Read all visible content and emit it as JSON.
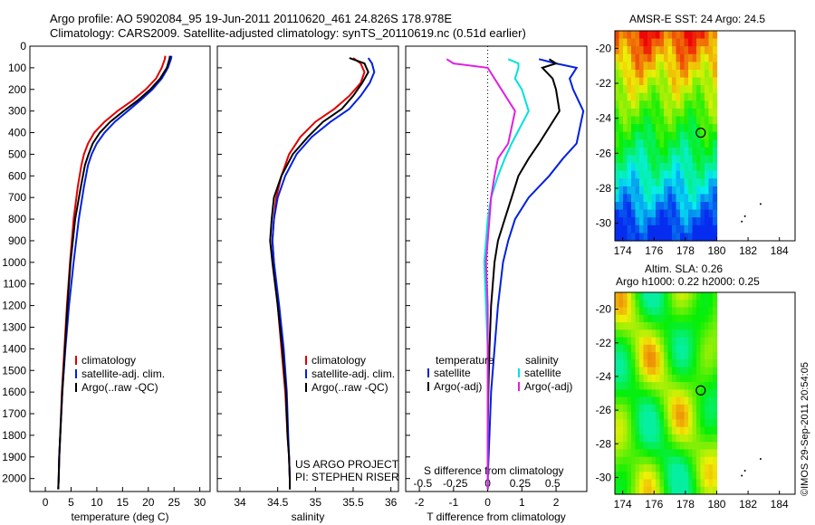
{
  "header": {
    "line1": "Argo profile: AO 5902084_95 19-Jun-2011 20110620_461 24.826S 178.978E",
    "line2": "Climatology: CARS2009. Satellite-adjusted climatology: synTS_20110619.nc (0.51d earlier)"
  },
  "side_stamp": "©IMOS 29-Sep-2011 20:54:05",
  "colors": {
    "climatology": "#e00000",
    "satellite": "#0020e0",
    "argo": "#000000",
    "cyan": "#00e0e0",
    "magenta": "#e020e0"
  },
  "chart_data": [
    {
      "type": "line",
      "id": "temperature",
      "xlabel": "temperature (deg C)",
      "xlim": [
        -3,
        32
      ],
      "xticks": [
        0,
        5,
        10,
        15,
        20,
        25,
        30
      ],
      "ylim": [
        0,
        2060
      ],
      "yticks": [
        0,
        100,
        200,
        300,
        400,
        500,
        600,
        700,
        800,
        900,
        1000,
        1100,
        1200,
        1300,
        1400,
        1500,
        1600,
        1700,
        1800,
        1900,
        2000
      ],
      "legend": [
        "climatology",
        "satellite-adj. clim.",
        "Argo(..raw -QC)"
      ],
      "series": [
        {
          "name": "climatology",
          "color": "#e00000",
          "x": [
            23.3,
            23.2,
            22.6,
            21.5,
            19.5,
            17.0,
            14.0,
            11.5,
            9.5,
            8.3,
            7.5,
            7.0,
            6.3,
            5.5,
            4.8,
            4.2,
            3.7,
            3.2,
            2.9,
            2.7,
            2.6,
            2.5
          ],
          "y": [
            45,
            60,
            100,
            150,
            200,
            250,
            300,
            350,
            400,
            450,
            500,
            550,
            650,
            800,
            1000,
            1200,
            1400,
            1600,
            1800,
            1900,
            2000,
            2050
          ]
        },
        {
          "name": "satellite-adj. clim.",
          "color": "#0020e0",
          "x": [
            24.5,
            24.4,
            23.8,
            22.6,
            20.8,
            18.5,
            16.0,
            13.5,
            11.5,
            10.0,
            9.0,
            8.3,
            7.5,
            6.5,
            5.5,
            4.6,
            3.9,
            3.3,
            2.9,
            2.7,
            2.6,
            2.5
          ],
          "y": [
            45,
            60,
            100,
            150,
            200,
            250,
            300,
            350,
            400,
            450,
            500,
            550,
            650,
            800,
            1000,
            1200,
            1400,
            1600,
            1800,
            1900,
            2000,
            2050
          ]
        },
        {
          "name": "Argo(..raw -QC)",
          "color": "#000000",
          "x": [
            24.2,
            24.1,
            23.6,
            22.3,
            20.4,
            18.0,
            15.2,
            12.6,
            10.6,
            9.2,
            8.4,
            7.7,
            6.9,
            5.8,
            4.9,
            4.3,
            3.8,
            3.3,
            2.9,
            2.7,
            2.6,
            2.5
          ],
          "y": [
            45,
            60,
            100,
            150,
            200,
            250,
            300,
            350,
            400,
            450,
            500,
            550,
            650,
            800,
            1000,
            1200,
            1400,
            1600,
            1800,
            1900,
            2000,
            2050
          ]
        }
      ]
    },
    {
      "type": "line",
      "id": "salinity",
      "xlabel": "salinity",
      "xlim": [
        33.7,
        36.1
      ],
      "xticks": [
        34,
        34.5,
        35,
        35.5,
        36
      ],
      "ylim": [
        0,
        2060
      ],
      "legend": [
        "climatology",
        "satellite-adj. clim.",
        "Argo(..raw -QC)"
      ],
      "annotation": [
        "US ARGO PROJECT",
        "PI: STEPHEN RISER"
      ],
      "series": [
        {
          "name": "climatology",
          "color": "#e00000",
          "x": [
            35.5,
            35.6,
            35.65,
            35.6,
            35.45,
            35.25,
            35.0,
            34.8,
            34.65,
            34.55,
            34.48,
            34.45,
            34.43,
            34.45,
            34.5,
            34.55,
            34.6,
            34.63,
            34.65,
            34.66,
            34.66
          ],
          "y": [
            55,
            80,
            120,
            170,
            230,
            290,
            350,
            420,
            500,
            600,
            700,
            800,
            900,
            1000,
            1200,
            1400,
            1600,
            1800,
            1900,
            2000,
            2050
          ]
        },
        {
          "name": "satellite-adj. clim.",
          "color": "#0020e0",
          "x": [
            35.7,
            35.75,
            35.78,
            35.72,
            35.6,
            35.45,
            35.2,
            34.95,
            34.75,
            34.6,
            34.5,
            34.45,
            34.43,
            34.45,
            34.52,
            34.58,
            34.62,
            34.64,
            34.65,
            34.66,
            34.66
          ],
          "y": [
            55,
            80,
            120,
            170,
            230,
            290,
            350,
            420,
            500,
            600,
            700,
            800,
            900,
            1000,
            1200,
            1400,
            1600,
            1800,
            1900,
            2000,
            2050
          ]
        },
        {
          "name": "Argo(..raw -QC)",
          "color": "#000000",
          "x": [
            35.45,
            35.65,
            35.7,
            35.62,
            35.5,
            35.35,
            35.1,
            34.9,
            34.7,
            34.55,
            34.45,
            34.42,
            34.4,
            34.43,
            34.5,
            34.56,
            34.61,
            34.63,
            34.65,
            34.66,
            34.66
          ],
          "y": [
            55,
            80,
            120,
            170,
            230,
            290,
            350,
            420,
            500,
            600,
            700,
            800,
            900,
            1000,
            1200,
            1400,
            1600,
            1800,
            1900,
            2000,
            2050
          ]
        }
      ]
    },
    {
      "type": "line",
      "id": "differences",
      "xlabel": "T difference from climatology",
      "xlabel_top": "S difference from climatology",
      "xlim": [
        -2.4,
        2.9
      ],
      "xticks": [
        -2,
        -1,
        0,
        1,
        2
      ],
      "top_ticks": [
        "-0.5",
        "-0.25",
        "0",
        "0.25",
        "0.5"
      ],
      "top_tick_x": [
        -1.9,
        -0.95,
        0,
        0.95,
        1.9
      ],
      "ylim": [
        0,
        2060
      ],
      "legend_left_title": "temperature",
      "legend_right_title": "salinity",
      "legend_left": [
        "satellite",
        "Argo(-adj)"
      ],
      "legend_right": [
        "satellite",
        "Argo(-adj)"
      ],
      "series": [
        {
          "name": "satellite",
          "color": "#0020e0",
          "x": [
            1.5,
            2.0,
            2.6,
            2.4,
            2.5,
            2.8,
            2.6,
            2.2,
            1.8,
            1.2,
            0.8,
            0.6,
            0.45,
            0.3,
            0.2,
            0.1,
            0.05,
            0.0,
            0.0
          ],
          "y": [
            60,
            80,
            100,
            150,
            200,
            300,
            450,
            520,
            600,
            700,
            800,
            900,
            1000,
            1200,
            1400,
            1600,
            1800,
            2000,
            2050
          ]
        },
        {
          "name": "Argo(-adj)",
          "color": "#000000",
          "x": [
            1.8,
            2.0,
            1.6,
            1.9,
            2.0,
            2.1,
            1.5,
            1.2,
            0.9,
            0.7,
            0.5,
            0.3,
            0.2,
            0.1,
            0.05,
            0.02,
            0.0,
            0.0,
            0.0
          ],
          "y": [
            60,
            80,
            100,
            150,
            200,
            300,
            450,
            520,
            600,
            700,
            800,
            900,
            1000,
            1200,
            1400,
            1600,
            1800,
            2000,
            2050
          ]
        },
        {
          "name": "satellite (S)",
          "color": "#00e0e0",
          "x": [
            0.6,
            0.9,
            0.9,
            0.8,
            1.0,
            1.2,
            0.7,
            0.5,
            0.3,
            0.1,
            0.0,
            -0.05,
            -0.1,
            -0.05,
            0.0,
            0.0,
            0.0,
            0.0,
            0.0
          ],
          "y": [
            60,
            80,
            100,
            150,
            200,
            300,
            450,
            520,
            600,
            700,
            800,
            900,
            1000,
            1200,
            1400,
            1600,
            1800,
            2000,
            2050
          ]
        },
        {
          "name": "Argo(-adj) (S)",
          "color": "#e020e0",
          "x": [
            -1.2,
            -1.0,
            0.0,
            0.2,
            0.4,
            0.8,
            0.6,
            0.3,
            0.2,
            0.1,
            0.05,
            0.0,
            -0.05,
            0.0,
            0.0,
            0.0,
            0.0,
            0.0,
            0.0
          ],
          "y": [
            60,
            80,
            100,
            150,
            200,
            300,
            450,
            520,
            600,
            700,
            800,
            900,
            1000,
            1200,
            1400,
            1600,
            1800,
            2000,
            2050
          ]
        }
      ]
    },
    {
      "type": "heatmap",
      "id": "sst-map",
      "title": "AMSR-E SST: 24  Argo: 24.5",
      "xlim": [
        173.5,
        185
      ],
      "ylim": [
        -31,
        -19
      ],
      "xticks": [
        174,
        176,
        178,
        180,
        182,
        184
      ],
      "yticks": [
        -20,
        -22,
        -24,
        -26,
        -28,
        -30
      ],
      "marker": {
        "lon": 178.978,
        "lat": -24.826
      }
    },
    {
      "type": "heatmap",
      "id": "sla-map",
      "title_line1": "Altim. SLA: 0.26",
      "title_line2": "Argo h1000: 0.22 h2000: 0.25",
      "xlim": [
        173.5,
        185
      ],
      "ylim": [
        -31,
        -19
      ],
      "xticks": [
        174,
        176,
        178,
        180,
        182,
        184
      ],
      "yticks": [
        -20,
        -22,
        -24,
        -26,
        -28,
        -30
      ],
      "marker": {
        "lon": 178.978,
        "lat": -24.826
      }
    }
  ]
}
